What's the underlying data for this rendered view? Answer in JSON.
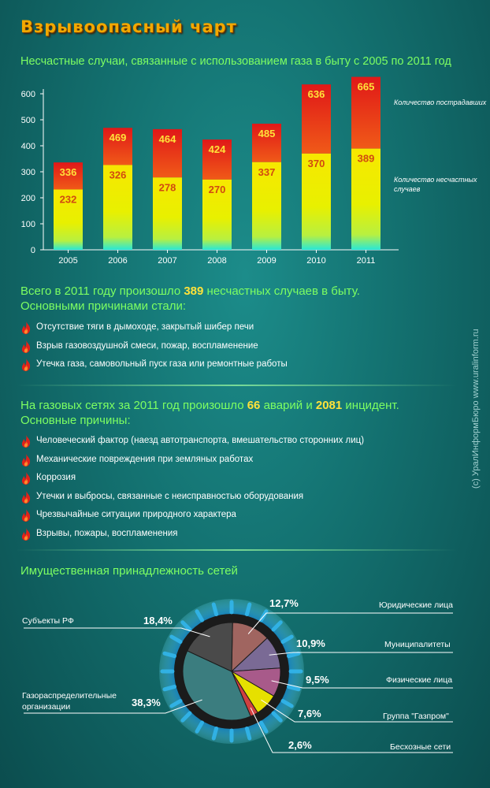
{
  "title": "Взрывоопасный чарт",
  "watermark": "(c) УралИнформБюро    www.uralinform.ru",
  "colors": {
    "accent_green": "#7dff62",
    "highlight_yellow": "#ffe23a",
    "bar_top_red": "#e8231a",
    "bar_bottom_yellow": "#f7f000",
    "bar_base_cyan": "#1fe6e0"
  },
  "chart_data": [
    {
      "type": "bar",
      "title": "Несчастные случаи, связанные с использованием газа в быту с 2005 по 2011 год",
      "categories": [
        "2005",
        "2006",
        "2007",
        "2008",
        "2009",
        "2010",
        "2011"
      ],
      "series": [
        {
          "name": "Количество пострадавших",
          "values": [
            336,
            469,
            464,
            424,
            485,
            636,
            665
          ]
        },
        {
          "name": "Количество несчастных случаев",
          "values": [
            232,
            326,
            278,
            270,
            337,
            370,
            389
          ]
        }
      ],
      "yticks": [
        0,
        100,
        200,
        300,
        400,
        500,
        600
      ],
      "ylim": [
        0,
        700
      ],
      "grid": false
    },
    {
      "type": "pie",
      "title": "Имущественная принадлежность сетей",
      "slices": [
        {
          "label": "Юридические лица",
          "value": 12.7,
          "pct": "12,7%",
          "color": "#a06560"
        },
        {
          "label": "Муниципалитеты",
          "value": 10.9,
          "pct": "10,9%",
          "color": "#7a6a95"
        },
        {
          "label": "Физические лица",
          "value": 9.5,
          "pct": "9,5%",
          "color": "#a85a8a"
        },
        {
          "label": "Группа \"Газпром\"",
          "value": 7.6,
          "pct": "7,6%",
          "color": "#e6e000"
        },
        {
          "label": "Бесхозные сети",
          "value": 2.6,
          "pct": "2,6%",
          "color": "#d04040"
        },
        {
          "label": "Газораспределительные организации",
          "value": 38.3,
          "pct": "38,3%",
          "color": "#3b7d7f"
        },
        {
          "label": "Субъекты РФ",
          "value": 18.4,
          "pct": "18,4%",
          "color": "#4a4a4a"
        }
      ]
    }
  ],
  "section1": {
    "line1_pre": "Всего в 2011 году произошло ",
    "line1_num": "389",
    "line1_post": " несчастных случаев в быту.",
    "line2": "Основными причинами стали:",
    "items": [
      "Отсутствие тяги в дымоходе, закрытый шибер печи",
      "Взрыв газовоздушной смеси, пожар, воспламенение",
      "Утечка газа, самовольный пуск газа или ремонтные работы"
    ]
  },
  "section2": {
    "line1_pre": "На газовых сетях за 2011 год произошло ",
    "line1_num1": "66",
    "line1_mid": " аварий и ",
    "line1_num2": "2081",
    "line1_post": " инцидент.",
    "line2": "Основные причины:",
    "items": [
      "Человеческий фактор (наезд автотранспорта, вмешательство сторонних лиц)",
      "Механические повреждения при земляных работах",
      "Коррозия",
      "Утечки и выбросы, связанные с неисправностью оборудования",
      "Чрезвычайные ситуации природного характера",
      "Взрывы, пожары, воспламенения"
    ]
  },
  "pie_labels": {
    "subjects": "Субъекты РФ",
    "gro_line1": "Газораспределительные",
    "gro_line2": "организации"
  }
}
